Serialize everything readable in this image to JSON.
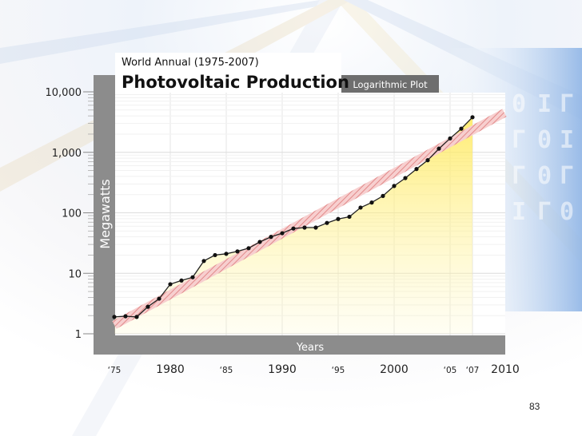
{
  "chart_data": {
    "type": "line",
    "title": "Photovoltaic Production",
    "subtitle": "World Annual (1975-2007)",
    "badge": "Logarithmic Plot",
    "xlabel": "Years",
    "ylabel": "Megawatts",
    "yscale": "log",
    "xlim": [
      1975,
      2008
    ],
    "ylim": [
      1,
      10000
    ],
    "y_ticks": [
      {
        "value": 1,
        "label": "1"
      },
      {
        "value": 10,
        "label": "10"
      },
      {
        "value": 100,
        "label": "100"
      },
      {
        "value": 1000,
        "label": "1,000"
      },
      {
        "value": 10000,
        "label": "10,000"
      }
    ],
    "x_ticks": [
      {
        "value": 1975,
        "label": "‘75",
        "major": false
      },
      {
        "value": 1980,
        "label": "1980",
        "major": true
      },
      {
        "value": 1985,
        "label": "‘85",
        "major": false
      },
      {
        "value": 1990,
        "label": "1990",
        "major": true
      },
      {
        "value": 1995,
        "label": "‘95",
        "major": false
      },
      {
        "value": 2000,
        "label": "2000",
        "major": true
      },
      {
        "value": 2005,
        "label": "‘05",
        "major": false
      },
      {
        "value": 2007,
        "label": "‘07",
        "major": false
      },
      {
        "value": 2010,
        "label": "2010",
        "major": true
      }
    ],
    "grid": true,
    "series": [
      {
        "x": [
          1975,
          1976,
          1977,
          1978,
          1979,
          1980,
          1981,
          1982,
          1983,
          1984,
          1985,
          1986,
          1987,
          1988,
          1989,
          1990,
          1991,
          1992,
          1993,
          1994,
          1995,
          1996,
          1997,
          1998,
          1999,
          2000,
          2001,
          2002,
          2003,
          2004,
          2005,
          2006,
          2007
        ],
        "values": [
          1.9,
          1.95,
          1.9,
          2.8,
          3.8,
          6.6,
          7.6,
          8.6,
          16,
          20,
          21,
          23,
          26,
          33,
          40,
          46,
          55,
          57,
          57,
          68,
          79,
          86,
          122,
          148,
          190,
          278,
          375,
          530,
          740,
          1150,
          1700,
          2460,
          3800
        ]
      }
    ],
    "trend": {
      "from": [
        1975,
        1.4
      ],
      "to": [
        2007,
        2600
      ]
    }
  },
  "page_number": "83"
}
